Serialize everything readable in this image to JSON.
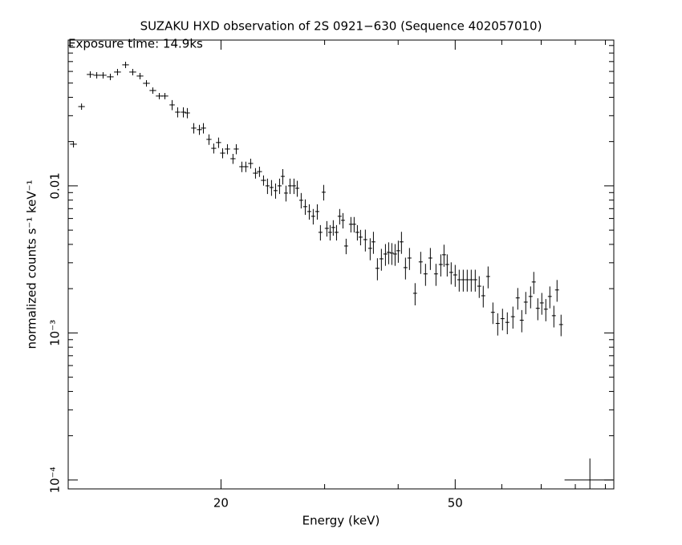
{
  "chart_data": {
    "type": "scatter",
    "title": "SUZAKU HXD observation of 2S 0921−630 (Sequence 402057010)",
    "subtitle": "Exposure time: 14.9ks",
    "x_label": "Energy (keV)",
    "y_label": "normalized counts s⁻¹ keV⁻¹",
    "xscale": "log",
    "yscale": "log",
    "color": "#000000",
    "xlim": [
      11,
      93
    ],
    "ylim": [
      8.7e-05,
      0.098
    ],
    "xticks": [
      20,
      50
    ],
    "xticks_minor": [
      30,
      40,
      60,
      70,
      80,
      90
    ],
    "yticks": [
      {
        "value": 0.0001,
        "label": "10⁻⁴"
      },
      {
        "value": 0.001,
        "label": "10⁻³"
      },
      0.01
    ],
    "yticks_minor": [
      0.0002,
      0.0003,
      0.0004,
      0.0005,
      0.0006,
      0.0007,
      0.0008,
      0.0009,
      0.002,
      0.003,
      0.004,
      0.005,
      0.006,
      0.007,
      0.008,
      0.009,
      0.02,
      0.03,
      0.04,
      0.05,
      0.06,
      0.07,
      0.08,
      0.09
    ],
    "x": [
      11.23,
      11.59,
      11.99,
      12.3,
      12.61,
      12.97,
      13.34,
      13.77,
      14.16,
      14.57,
      14.94,
      15.32,
      15.71,
      16.06,
      16.52,
      16.88,
      17.26,
      17.53,
      17.98,
      18.38,
      18.67,
      19.08,
      19.44,
      19.81,
      20.13,
      20.51,
      20.96,
      21.23,
      21.7,
      22.04,
      22.46,
      22.89,
      23.25,
      23.62,
      23.99,
      24.37,
      24.76,
      25.15,
      25.47,
      25.79,
      26.2,
      26.61,
      26.95,
      27.37,
      27.81,
      28.25,
      28.69,
      29.15,
      29.51,
      29.89,
      30.26,
      30.65,
      31.03,
      31.43,
      31.82,
      32.23,
      32.63,
      33.25,
      33.67,
      34.1,
      34.53,
      35.18,
      35.85,
      36.31,
      36.88,
      37.46,
      38.06,
      38.54,
      39.02,
      39.52,
      40.02,
      40.52,
      41.16,
      41.81,
      42.74,
      43.69,
      44.52,
      45.37,
      46.38,
      47.26,
      47.86,
      48.46,
      49.22,
      50.0,
      50.79,
      51.6,
      52.41,
      53.24,
      54.08,
      54.93,
      55.8,
      56.87,
      57.95,
      59.05,
      60.17,
      61.31,
      62.67,
      63.87,
      64.88,
      65.9,
      67.16,
      68.0,
      69.08,
      70.17,
      71.28,
      72.41,
      73.56,
      74.48,
      75.66,
      84.7
    ],
    "xerr": [
      0.15,
      0.15,
      0.16,
      0.16,
      0.17,
      0.17,
      0.18,
      0.18,
      0.19,
      0.19,
      0.2,
      0.2,
      0.21,
      0.21,
      0.17,
      0.17,
      0.17,
      0.18,
      0.18,
      0.18,
      0.19,
      0.19,
      0.19,
      0.2,
      0.2,
      0.21,
      0.21,
      0.21,
      0.22,
      0.22,
      0.22,
      0.23,
      0.23,
      0.24,
      0.19,
      0.19,
      0.19,
      0.2,
      0.2,
      0.2,
      0.2,
      0.21,
      0.21,
      0.21,
      0.22,
      0.22,
      0.22,
      0.23,
      0.23,
      0.23,
      0.24,
      0.24,
      0.24,
      0.25,
      0.25,
      0.25,
      0.25,
      0.26,
      0.26,
      0.27,
      0.27,
      0.27,
      0.28,
      0.28,
      0.29,
      0.29,
      0.3,
      0.3,
      0.3,
      0.31,
      0.31,
      0.32,
      0.32,
      0.33,
      0.33,
      0.34,
      0.35,
      0.35,
      0.36,
      0.37,
      0.37,
      0.38,
      0.38,
      0.39,
      0.4,
      0.4,
      0.41,
      0.42,
      0.42,
      0.43,
      0.44,
      0.44,
      0.45,
      0.46,
      0.47,
      0.48,
      0.49,
      0.5,
      0.51,
      0.51,
      0.52,
      0.53,
      0.54,
      0.55,
      0.56,
      0.56,
      0.57,
      0.58,
      0.59,
      8
    ],
    "values": [
      0.0192,
      0.0346,
      0.0572,
      0.0565,
      0.0565,
      0.0551,
      0.0594,
      0.0665,
      0.0594,
      0.0558,
      0.0498,
      0.0445,
      0.0408,
      0.0408,
      0.0355,
      0.0317,
      0.0317,
      0.0313,
      0.0247,
      0.0241,
      0.0247,
      0.0207,
      0.018,
      0.0197,
      0.0167,
      0.0178,
      0.0153,
      0.0178,
      0.0135,
      0.0135,
      0.0142,
      0.0122,
      0.0125,
      0.0109,
      0.01,
      0.00975,
      0.00928,
      0.01,
      0.0116,
      0.00893,
      0.01,
      0.01,
      0.00963,
      0.00798,
      0.00722,
      0.00669,
      0.00621,
      0.00669,
      0.00483,
      0.00905,
      0.00514,
      0.00483,
      0.00521,
      0.00483,
      0.00621,
      0.00583,
      0.0039,
      0.00548,
      0.00548,
      0.00483,
      0.00448,
      0.00431,
      0.00376,
      0.00416,
      0.00275,
      0.00319,
      0.00344,
      0.00353,
      0.00349,
      0.00344,
      0.00362,
      0.00416,
      0.00278,
      0.00323,
      0.00186,
      0.00304,
      0.00252,
      0.00323,
      0.00252,
      0.00292,
      0.0034,
      0.00292,
      0.00258,
      0.00248,
      0.0023,
      0.0023,
      0.0023,
      0.0023,
      0.0023,
      0.00208,
      0.00179,
      0.00242,
      0.00138,
      0.00116,
      0.00125,
      0.00118,
      0.00129,
      0.00173,
      0.00122,
      0.00162,
      0.00177,
      0.00222,
      0.00147,
      0.0016,
      0.00145,
      0.00177,
      0.00131,
      0.00196,
      0.00114,
      0.0001
    ],
    "yerr": [
      0.00096,
      0.0017,
      0.0029,
      0.0028,
      0.0028,
      0.0028,
      0.003,
      0.0033,
      0.003,
      0.0028,
      0.0025,
      0.0022,
      0.002,
      0.002,
      0.0028,
      0.0025,
      0.0025,
      0.0025,
      0.002,
      0.0019,
      0.002,
      0.0017,
      0.0014,
      0.0016,
      0.0013,
      0.0014,
      0.0012,
      0.0014,
      0.0011,
      0.0011,
      0.0011,
      0.001,
      0.001,
      0.00087,
      0.0012,
      0.0012,
      0.0011,
      0.0012,
      0.0014,
      0.0011,
      0.0012,
      0.0012,
      0.0012,
      0.00096,
      0.00087,
      0.0008,
      0.00075,
      0.0008,
      0.00058,
      0.0011,
      0.00062,
      0.00058,
      0.00063,
      0.00058,
      0.00075,
      0.0007,
      0.00047,
      0.00066,
      0.00066,
      0.00058,
      0.00054,
      0.00073,
      0.00064,
      0.00071,
      0.00047,
      0.00054,
      0.00058,
      0.0006,
      0.00059,
      0.00058,
      0.00062,
      0.00071,
      0.00047,
      0.00055,
      0.00032,
      0.00052,
      0.00043,
      0.00055,
      0.00043,
      0.0005,
      0.00058,
      0.0005,
      0.00044,
      0.00042,
      0.00039,
      0.00039,
      0.00039,
      0.00039,
      0.00039,
      0.00035,
      0.0003,
      0.00041,
      0.00023,
      0.0002,
      0.00021,
      0.0002,
      0.00022,
      0.00029,
      0.00021,
      0.00028,
      0.0003,
      0.00038,
      0.00025,
      0.00027,
      0.00025,
      0.0003,
      0.00022,
      0.00033,
      0.00019,
      4e-05
    ]
  }
}
